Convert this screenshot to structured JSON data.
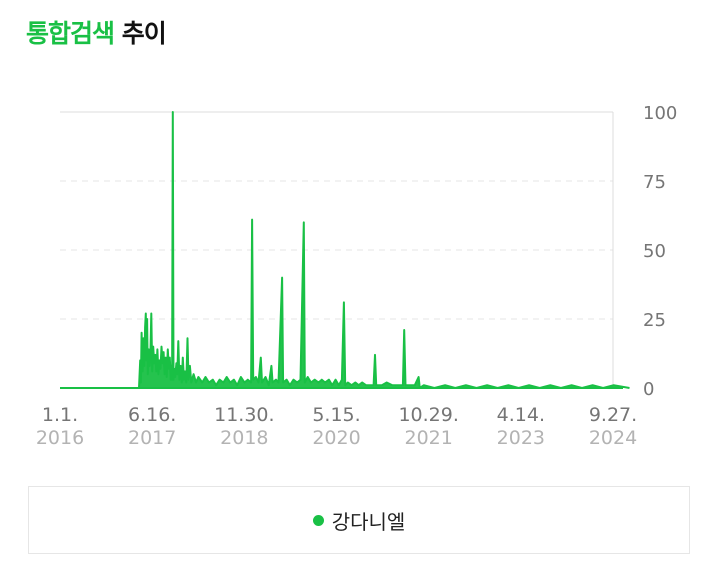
{
  "header": {
    "title_accent": "통합검색",
    "title_rest": "추이"
  },
  "colors": {
    "accent": "#19c045",
    "series": "#19c045",
    "grid": "#e6e6e6",
    "axis_text": "#757575",
    "year_text": "#b3b3b3"
  },
  "legend": {
    "label": "강다니엘"
  },
  "chart_data": {
    "type": "area",
    "title": "",
    "xlabel": "",
    "ylabel": "",
    "ylim": [
      0,
      100
    ],
    "yticks": [
      "0",
      "25",
      "50",
      "75",
      "100"
    ],
    "xlim": [
      "2016-01-01",
      "2024-12-31"
    ],
    "xticks": [
      {
        "date": "2016-01-01",
        "day": "1.1.",
        "year": "2016"
      },
      {
        "date": "2017-06-16",
        "day": "6.16.",
        "year": "2017"
      },
      {
        "date": "2018-11-30",
        "day": "11.30.",
        "year": "2018"
      },
      {
        "date": "2020-05-15",
        "day": "5.15.",
        "year": "2020"
      },
      {
        "date": "2021-10-29",
        "day": "10.29.",
        "year": "2021"
      },
      {
        "date": "2023-04-14",
        "day": "4.14.",
        "year": "2023"
      },
      {
        "date": "2024-09-27",
        "day": "9.27.",
        "year": "2024"
      }
    ],
    "grid": true,
    "legend_position": "bottom",
    "series": [
      {
        "name": "강다니엘",
        "color": "#19c045",
        "points": [
          [
            "2016-01-01",
            0
          ],
          [
            "2017-03-01",
            0
          ],
          [
            "2017-04-01",
            0
          ],
          [
            "2017-04-08",
            10
          ],
          [
            "2017-04-12",
            2
          ],
          [
            "2017-04-16",
            20
          ],
          [
            "2017-04-22",
            6
          ],
          [
            "2017-04-27",
            18
          ],
          [
            "2017-05-02",
            8
          ],
          [
            "2017-05-06",
            22
          ],
          [
            "2017-05-10",
            27
          ],
          [
            "2017-05-14",
            10
          ],
          [
            "2017-05-18",
            25
          ],
          [
            "2017-05-22",
            5
          ],
          [
            "2017-05-27",
            14
          ],
          [
            "2017-06-01",
            8
          ],
          [
            "2017-06-06",
            12
          ],
          [
            "2017-06-11",
            27
          ],
          [
            "2017-06-16",
            6
          ],
          [
            "2017-06-22",
            15
          ],
          [
            "2017-06-28",
            9
          ],
          [
            "2017-07-04",
            12
          ],
          [
            "2017-07-10",
            6
          ],
          [
            "2017-07-16",
            14
          ],
          [
            "2017-07-22",
            5
          ],
          [
            "2017-07-28",
            10
          ],
          [
            "2017-08-03",
            7
          ],
          [
            "2017-08-09",
            15
          ],
          [
            "2017-08-15",
            9
          ],
          [
            "2017-08-21",
            13
          ],
          [
            "2017-08-27",
            5
          ],
          [
            "2017-09-02",
            11
          ],
          [
            "2017-09-08",
            4
          ],
          [
            "2017-09-14",
            14
          ],
          [
            "2017-09-20",
            7
          ],
          [
            "2017-09-26",
            11
          ],
          [
            "2017-10-01",
            3
          ],
          [
            "2017-10-05",
            8
          ],
          [
            "2017-10-09",
            3
          ],
          [
            "2017-10-13",
            100
          ],
          [
            "2017-10-17",
            3
          ],
          [
            "2017-10-21",
            7
          ],
          [
            "2017-10-27",
            4
          ],
          [
            "2017-11-03",
            9
          ],
          [
            "2017-11-08",
            5
          ],
          [
            "2017-11-14",
            17
          ],
          [
            "2017-11-20",
            3
          ],
          [
            "2017-11-27",
            8
          ],
          [
            "2017-12-04",
            2
          ],
          [
            "2017-12-10",
            11
          ],
          [
            "2017-12-16",
            3
          ],
          [
            "2017-12-22",
            6
          ],
          [
            "2017-12-30",
            2
          ],
          [
            "2018-01-06",
            18
          ],
          [
            "2018-01-12",
            3
          ],
          [
            "2018-01-20",
            8
          ],
          [
            "2018-01-28",
            2
          ],
          [
            "2018-02-10",
            5
          ],
          [
            "2018-02-24",
            2
          ],
          [
            "2018-03-10",
            4
          ],
          [
            "2018-04-01",
            2
          ],
          [
            "2018-04-20",
            4
          ],
          [
            "2018-05-10",
            2
          ],
          [
            "2018-06-01",
            3
          ],
          [
            "2018-06-20",
            1
          ],
          [
            "2018-07-10",
            3
          ],
          [
            "2018-08-01",
            2
          ],
          [
            "2018-08-20",
            4
          ],
          [
            "2018-09-10",
            2
          ],
          [
            "2018-10-01",
            3
          ],
          [
            "2018-10-20",
            1
          ],
          [
            "2018-11-10",
            4
          ],
          [
            "2018-12-01",
            2
          ],
          [
            "2018-12-20",
            3
          ],
          [
            "2019-01-08",
            2
          ],
          [
            "2019-01-14",
            61
          ],
          [
            "2019-01-20",
            3
          ],
          [
            "2019-02-05",
            4
          ],
          [
            "2019-02-20",
            2
          ],
          [
            "2019-03-05",
            11
          ],
          [
            "2019-03-12",
            2
          ],
          [
            "2019-04-01",
            4
          ],
          [
            "2019-04-20",
            1
          ],
          [
            "2019-05-05",
            8
          ],
          [
            "2019-05-12",
            2
          ],
          [
            "2019-06-01",
            3
          ],
          [
            "2019-06-15",
            2
          ],
          [
            "2019-07-06",
            40
          ],
          [
            "2019-07-12",
            2
          ],
          [
            "2019-08-01",
            3
          ],
          [
            "2019-08-20",
            1
          ],
          [
            "2019-09-10",
            3
          ],
          [
            "2019-10-01",
            2
          ],
          [
            "2019-10-20",
            3
          ],
          [
            "2019-11-08",
            60
          ],
          [
            "2019-11-14",
            2
          ],
          [
            "2019-12-01",
            4
          ],
          [
            "2019-12-20",
            2
          ],
          [
            "2020-01-10",
            3
          ],
          [
            "2020-02-01",
            2
          ],
          [
            "2020-02-20",
            3
          ],
          [
            "2020-03-10",
            2
          ],
          [
            "2020-04-01",
            3
          ],
          [
            "2020-04-20",
            1
          ],
          [
            "2020-05-10",
            3
          ],
          [
            "2020-05-28",
            1
          ],
          [
            "2020-06-15",
            3
          ],
          [
            "2020-06-27",
            31
          ],
          [
            "2020-07-04",
            1
          ],
          [
            "2020-07-20",
            2
          ],
          [
            "2020-08-10",
            1
          ],
          [
            "2020-09-01",
            2
          ],
          [
            "2020-09-20",
            1
          ],
          [
            "2020-10-10",
            2
          ],
          [
            "2020-11-01",
            1
          ],
          [
            "2020-12-15",
            1
          ],
          [
            "2020-12-23",
            12
          ],
          [
            "2020-12-30",
            1
          ],
          [
            "2021-02-01",
            1
          ],
          [
            "2021-03-01",
            2
          ],
          [
            "2021-04-01",
            1
          ],
          [
            "2021-06-02",
            1
          ],
          [
            "2021-06-10",
            21
          ],
          [
            "2021-06-17",
            1
          ],
          [
            "2021-07-20",
            1
          ],
          [
            "2021-08-10",
            1
          ],
          [
            "2021-09-01",
            4
          ],
          [
            "2021-09-08",
            0
          ],
          [
            "2021-10-01",
            1
          ],
          [
            "2021-12-01",
            0
          ],
          [
            "2022-02-01",
            1
          ],
          [
            "2022-04-01",
            0
          ],
          [
            "2022-06-01",
            1
          ],
          [
            "2022-08-01",
            0
          ],
          [
            "2022-10-01",
            1
          ],
          [
            "2022-12-01",
            0
          ],
          [
            "2023-02-01",
            1
          ],
          [
            "2023-04-01",
            0
          ],
          [
            "2023-06-01",
            1
          ],
          [
            "2023-08-01",
            0
          ],
          [
            "2023-10-01",
            1
          ],
          [
            "2023-12-01",
            0
          ],
          [
            "2024-02-01",
            1
          ],
          [
            "2024-04-01",
            0
          ],
          [
            "2024-06-01",
            1
          ],
          [
            "2024-08-01",
            0
          ],
          [
            "2024-10-01",
            1
          ],
          [
            "2024-12-31",
            0
          ]
        ]
      }
    ]
  }
}
